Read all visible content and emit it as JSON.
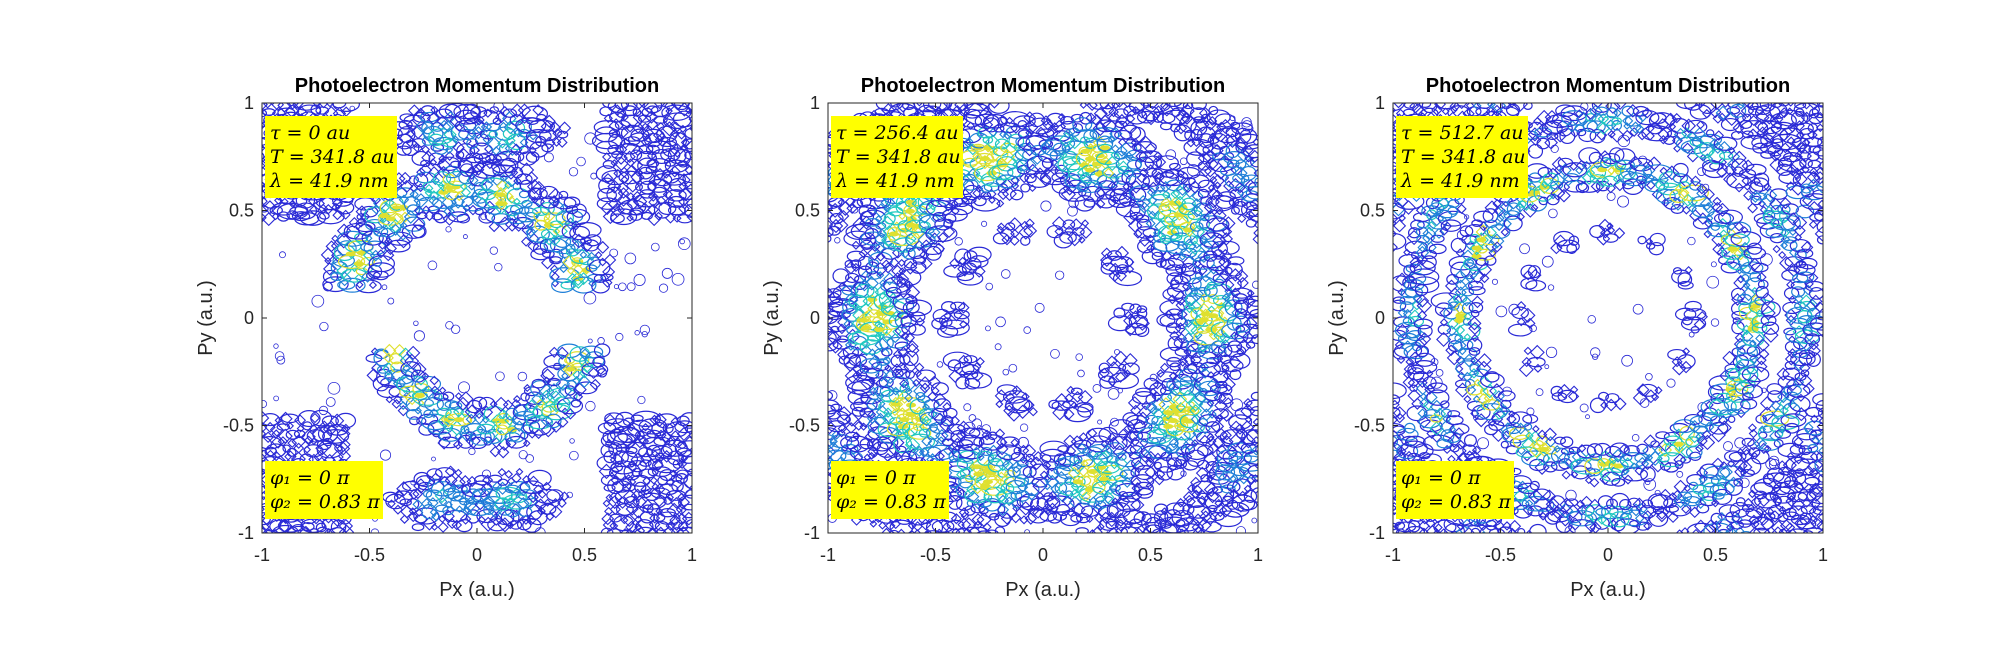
{
  "chart_data": [
    {
      "type": "contour",
      "title": "Photoelectron Momentum Distribution",
      "xlabel": "Px (a.u.)",
      "ylabel": "Py (a.u.)",
      "xlim": [
        -1,
        1
      ],
      "ylim": [
        -1,
        1
      ],
      "xticks": [
        "-1",
        "-0.5",
        "0",
        "0.5",
        "1"
      ],
      "yticks": [
        "-1",
        "-0.5",
        "0",
        "0.5",
        "1"
      ],
      "grid": false,
      "colormap": "parula",
      "pattern": "two-lobes",
      "annotations_top": [
        "τ = 0 au",
        "T = 341.8 au",
        "λ = 41.9 nm"
      ],
      "annotations_bottom": [
        "φ₁ = 0 π",
        "φ₂ = 0.83 π"
      ]
    },
    {
      "type": "contour",
      "title": "Photoelectron Momentum Distribution",
      "xlabel": "Px (a.u.)",
      "ylabel": "Py (a.u.)",
      "xlim": [
        -1,
        1
      ],
      "ylim": [
        -1,
        1
      ],
      "xticks": [
        "-1",
        "-0.5",
        "0",
        "0.5",
        "1"
      ],
      "yticks": [
        "-1",
        "-0.5",
        "0",
        "0.5",
        "1"
      ],
      "grid": false,
      "colormap": "parula",
      "pattern": "ring",
      "annotations_top": [
        "τ = 256.4 au",
        "T = 341.8 au",
        "λ = 41.9 nm"
      ],
      "annotations_bottom": [
        "φ₁ = 0 π",
        "φ₂ = 0.83 π"
      ]
    },
    {
      "type": "contour",
      "title": "Photoelectron Momentum Distribution",
      "xlabel": "Px (a.u.)",
      "ylabel": "Py (a.u.)",
      "xlim": [
        -1,
        1
      ],
      "ylim": [
        -1,
        1
      ],
      "xticks": [
        "-1",
        "-0.5",
        "0",
        "0.5",
        "1"
      ],
      "yticks": [
        "-1",
        "-0.5",
        "0",
        "0.5",
        "1"
      ],
      "grid": false,
      "colormap": "parula",
      "pattern": "double-ring",
      "annotations_top": [
        "τ = 512.7 au",
        "T = 341.8 au",
        "λ = 41.9 nm"
      ],
      "annotations_bottom": [
        "φ₁ = 0 π",
        "φ₂ = 0.83 π"
      ]
    }
  ],
  "colors": {
    "contour_low": "#2a2ad6",
    "contour_mid": "#1f7fd8",
    "contour_high": "#20c8c0",
    "contour_peak": "#dfe030",
    "annotation_bg": "#ffff00",
    "axis": "#262626"
  }
}
